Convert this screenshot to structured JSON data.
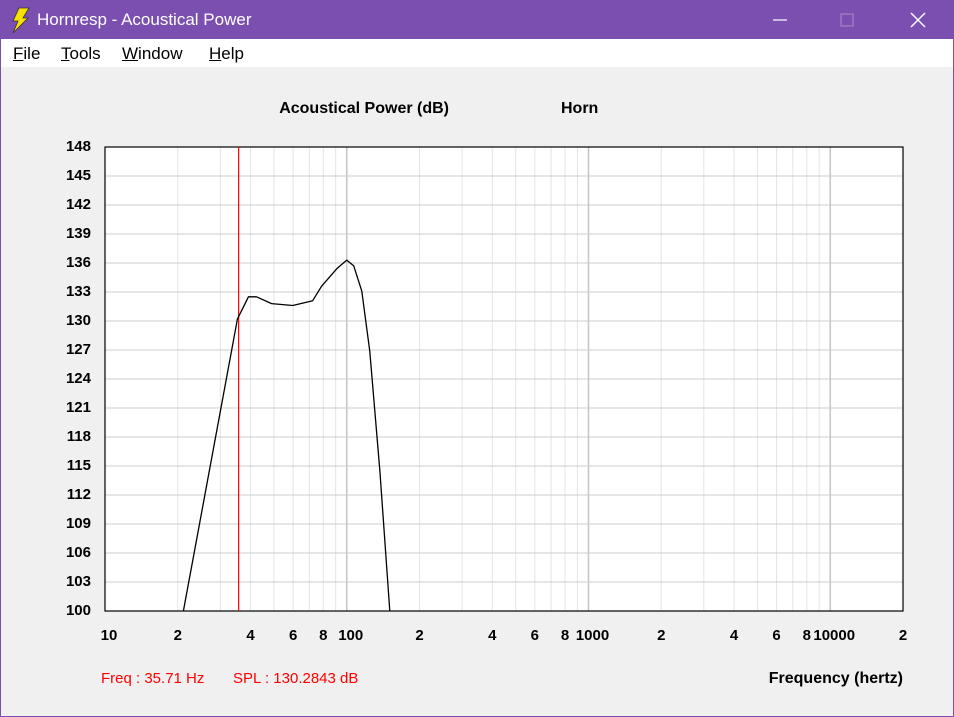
{
  "window": {
    "title": "Hornresp - Acoustical Power"
  },
  "menu": [
    "File",
    "Tools",
    "Window",
    "Help"
  ],
  "chart_data": {
    "type": "line",
    "title": "Acoustical Power (dB)",
    "subtitle": "Horn",
    "x_label": "Frequency (hertz)",
    "log_x": true,
    "grid": true,
    "x": [
      21.1,
      35.3,
      39.2,
      42.3,
      48.9,
      59.8,
      72.3,
      78.7,
      90.9,
      100,
      106.9,
      115.4,
      124.5,
      137.1,
      150.7
    ],
    "series": [
      {
        "name": "Horn",
        "color": "#000000",
        "values": [
          100,
          130.2,
          132.5,
          132.5,
          131.8,
          131.6,
          132.1,
          133.6,
          135.4,
          136.3,
          135.7,
          133.1,
          126.9,
          114.5,
          100
        ]
      }
    ],
    "xlim": [
      10,
      20000
    ],
    "ylim": [
      100,
      148
    ],
    "yticks": [
      100,
      103,
      106,
      109,
      112,
      115,
      118,
      121,
      124,
      127,
      130,
      133,
      136,
      139,
      142,
      145,
      148
    ],
    "xticks": [
      10,
      {
        "value": 20,
        "label": "2"
      },
      {
        "value": 40,
        "label": "4"
      },
      {
        "value": 60,
        "label": "6"
      },
      {
        "value": 80,
        "label": "8"
      },
      100,
      {
        "value": 200,
        "label": "2"
      },
      {
        "value": 400,
        "label": "4"
      },
      {
        "value": 600,
        "label": "6"
      },
      {
        "value": 800,
        "label": "8"
      },
      1000,
      {
        "value": 2000,
        "label": "2"
      },
      {
        "value": 4000,
        "label": "4"
      },
      {
        "value": 6000,
        "label": "6"
      },
      {
        "value": 8000,
        "label": "8"
      },
      10000,
      {
        "value": 20000,
        "label": "2"
      }
    ],
    "xminor": [
      30,
      50,
      70,
      90,
      300,
      500,
      700,
      900,
      3000,
      5000,
      7000,
      9000
    ],
    "cursor": {
      "x": 35.71,
      "color": "#ff0000",
      "freq_label": "Freq : 35.71 Hz",
      "spl_label": "SPL : 130.2843 dB"
    }
  }
}
